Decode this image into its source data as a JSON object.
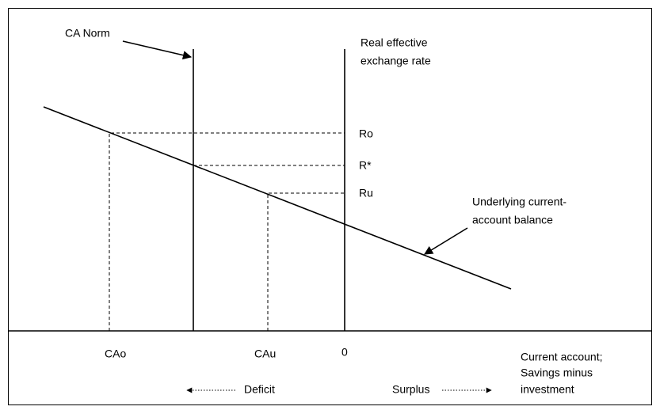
{
  "labels": {
    "ca_norm": "CA Norm",
    "reer_line1": "Real effective",
    "reer_line2": "exchange rate",
    "ro": "Ro",
    "r_star": "R*",
    "ru": "Ru",
    "underlying_line1": "Underlying current-",
    "underlying_line2": "account balance",
    "cao": "CAo",
    "cau": "CAu",
    "zero": "0",
    "x_axis_line1": "Current account;",
    "x_axis_line2": "Savings minus",
    "x_axis_line3": "investment",
    "deficit": "Deficit",
    "surplus": "Surplus"
  }
}
